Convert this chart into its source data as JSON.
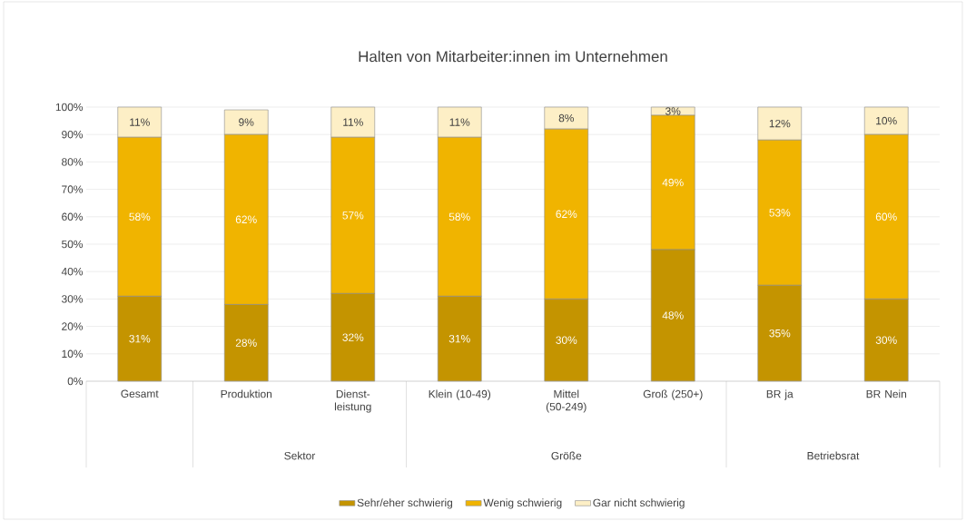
{
  "chart_data": {
    "type": "bar",
    "title": "Halten von Mitarbeiter:innen im Unternehmen",
    "categories": [
      "Gesamt",
      "Produktion",
      "Dienst-leistung",
      "Klein (10-49)",
      "Mittel (50-249)",
      "Groß (250+)",
      "BR ja",
      "BR Nein"
    ],
    "stacked": true,
    "series": [
      {
        "name": "Sehr/eher schwierig",
        "color": "#c49400",
        "values": [
          31,
          28,
          32,
          31,
          30,
          48,
          35,
          30
        ],
        "value_labels": [
          "31%",
          "28%",
          "32%",
          "31%",
          "30%",
          "48%",
          "35%",
          "30%"
        ]
      },
      {
        "name": "Wenig schwierig",
        "color": "#f0b400",
        "values": [
          58,
          62,
          57,
          58,
          62,
          49,
          53,
          60
        ],
        "value_labels": [
          "58%",
          "62%",
          "57%",
          "58%",
          "62%",
          "49%",
          "53%",
          "60%"
        ]
      },
      {
        "name": "Gar nicht schwierig",
        "color": "#fdefc6",
        "values": [
          11,
          9,
          11,
          11,
          8,
          3,
          12,
          10
        ],
        "value_labels": [
          "11%",
          "9%",
          "11%",
          "11%",
          "8%",
          "3%",
          "12%",
          "10%"
        ]
      }
    ],
    "ylim": [
      0,
      100
    ],
    "yticks": [
      {
        "value": 0,
        "label": "0%"
      },
      {
        "value": 10,
        "label": "10%"
      },
      {
        "value": 20,
        "label": "20%"
      },
      {
        "value": 30,
        "label": "30%"
      },
      {
        "value": 40,
        "label": "40%"
      },
      {
        "value": 50,
        "label": "50%"
      },
      {
        "value": 60,
        "label": "60%"
      },
      {
        "value": 70,
        "label": "70%"
      },
      {
        "value": 80,
        "label": "80%"
      },
      {
        "value": 90,
        "label": "90%"
      },
      {
        "value": 100,
        "label": "100%"
      }
    ],
    "grid": "y",
    "legend": "bottom",
    "annotations": [
      "Sektor",
      "Größe",
      "Betriebsrat"
    ]
  }
}
